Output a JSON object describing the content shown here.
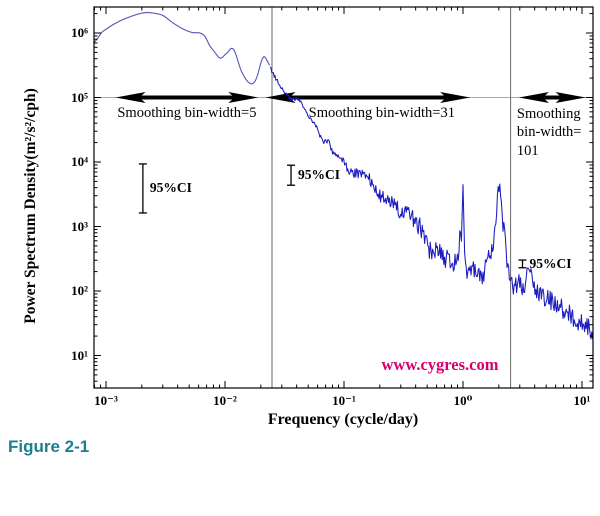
{
  "figure": {
    "caption": "Figure 2-1",
    "caption_color": "#1a8090"
  },
  "watermark": {
    "text": "www.cygres.com",
    "color": "#d4006e"
  },
  "chart_data": {
    "type": "line",
    "title": "",
    "xlabel": "Frequency (cycle/day)",
    "ylabel": "Power Spectrum Density(m²/s²/cph)",
    "x_scale": "log10",
    "y_scale": "log10",
    "xlim_log10": [
      -3.105,
      1.092
    ],
    "ylim_log10": [
      0.5,
      6.4
    ],
    "grid": false,
    "x_ticks": [
      {
        "log10": -3,
        "label": "10⁻³"
      },
      {
        "log10": -2,
        "label": "10⁻²"
      },
      {
        "log10": -1,
        "label": "10⁻¹"
      },
      {
        "log10": 0,
        "label": "10⁰"
      },
      {
        "log10": 1,
        "label": "10¹"
      }
    ],
    "y_ticks": [
      {
        "log10": 1,
        "label": "10¹"
      },
      {
        "log10": 2,
        "label": "10²"
      },
      {
        "log10": 3,
        "label": "10³"
      },
      {
        "log10": 4,
        "label": "10⁴"
      },
      {
        "log10": 5,
        "label": "10⁵"
      },
      {
        "log10": 6,
        "label": "10⁶"
      }
    ],
    "line_color": "#1b1bbe",
    "line_color_smooth": "#5656b8",
    "divider_color": "#686868",
    "baseline_color": "#a8a8a8",
    "dividers_log10f": [
      -1.605,
      0.4
    ],
    "arrow_line_log10p": 5.0,
    "regions": [
      {
        "label_lines": [
          "Smoothing bin-width=5"
        ],
        "arrow_log10f": [
          -2.92,
          -1.72
        ],
        "label_dx": 0,
        "label_align": "center"
      },
      {
        "label_lines": [
          "Smoothing bin-width=31"
        ],
        "arrow_log10f": [
          -1.66,
          0.06
        ],
        "label_dx": 14,
        "label_align": "center"
      },
      {
        "label_lines": [
          "Smoothing",
          "bin-width=",
          "101"
        ],
        "arrow_log10f": [
          0.47,
          1.03
        ],
        "label_dx": 0,
        "label_align": "left"
      }
    ],
    "ci_bars": [
      {
        "label": "95%CI",
        "log10f": -2.69,
        "log10p_top": 3.97,
        "log10p_bottom": 3.21
      },
      {
        "label": "95%CI",
        "log10f": -1.445,
        "log10p_top": 3.95,
        "log10p_bottom": 3.64
      },
      {
        "label": "95%CI",
        "log10f": 0.5,
        "log10p_top": 2.48,
        "log10p_bottom": 2.36
      }
    ],
    "envelope_log10": [
      [
        -3.105,
        5.85
      ],
      [
        -3.03,
        6.02
      ],
      [
        -2.91,
        6.16
      ],
      [
        -2.8,
        6.25
      ],
      [
        -2.69,
        6.31
      ],
      [
        -2.61,
        6.31
      ],
      [
        -2.52,
        6.27
      ],
      [
        -2.44,
        6.16
      ],
      [
        -2.36,
        6.07
      ],
      [
        -2.28,
        6.01
      ],
      [
        -2.21,
        6.0
      ],
      [
        -2.17,
        5.95
      ],
      [
        -2.13,
        5.81
      ],
      [
        -2.09,
        5.71
      ],
      [
        -2.04,
        5.61
      ],
      [
        -1.99,
        5.68
      ],
      [
        -1.93,
        5.75
      ],
      [
        -1.86,
        5.4
      ],
      [
        -1.79,
        5.22
      ],
      [
        -1.74,
        5.28
      ],
      [
        -1.68,
        5.62
      ],
      [
        -1.64,
        5.55
      ],
      [
        -1.6,
        5.38
      ],
      [
        -1.54,
        5.19
      ],
      [
        -1.45,
        4.98
      ],
      [
        -1.38,
        4.96
      ],
      [
        -1.3,
        4.73
      ],
      [
        -1.24,
        4.57
      ],
      [
        -1.18,
        4.34
      ],
      [
        -1.13,
        4.3
      ],
      [
        -1.09,
        4.14
      ],
      [
        -1.02,
        4.05
      ],
      [
        -0.95,
        3.84
      ],
      [
        -0.88,
        3.83
      ],
      [
        -0.8,
        3.8
      ],
      [
        -0.74,
        3.56
      ],
      [
        -0.69,
        3.46
      ],
      [
        -0.6,
        3.4
      ],
      [
        -0.51,
        3.18
      ],
      [
        -0.45,
        3.22
      ],
      [
        -0.39,
        3.05
      ],
      [
        -0.33,
        2.92
      ],
      [
        -0.28,
        2.64
      ],
      [
        -0.22,
        2.62
      ],
      [
        -0.17,
        2.53
      ],
      [
        -0.07,
        2.45
      ],
      [
        0.0,
        2.38
      ],
      [
        0.05,
        2.28
      ],
      [
        0.11,
        2.32
      ],
      [
        0.16,
        2.25
      ],
      [
        0.21,
        2.48
      ],
      [
        0.26,
        2.85
      ],
      [
        0.303,
        3.57
      ],
      [
        0.34,
        3.0
      ],
      [
        0.375,
        2.4
      ],
      [
        0.41,
        2.1
      ],
      [
        0.44,
        2.05
      ],
      [
        0.47,
        2.12
      ],
      [
        0.51,
        2.05
      ],
      [
        0.54,
        2.2
      ],
      [
        0.565,
        2.22
      ],
      [
        0.6,
        2.05
      ],
      [
        0.65,
        1.94
      ],
      [
        0.73,
        1.86
      ],
      [
        0.82,
        1.74
      ],
      [
        0.9,
        1.63
      ],
      [
        0.98,
        1.52
      ],
      [
        1.04,
        1.45
      ],
      [
        1.092,
        1.38
      ]
    ],
    "spikes": [
      {
        "log10f": -0.025,
        "peak_log10p": 3.0,
        "width": 0.01
      },
      {
        "log10f": 0.0,
        "peak_log10p": 3.52,
        "width": 0.009
      }
    ],
    "noise": {
      "smooth_until_log10f": -1.62,
      "amp_small": 0.03,
      "amp_max": 0.15,
      "ramp_start": -1.25,
      "ramp_end": -0.35
    }
  }
}
